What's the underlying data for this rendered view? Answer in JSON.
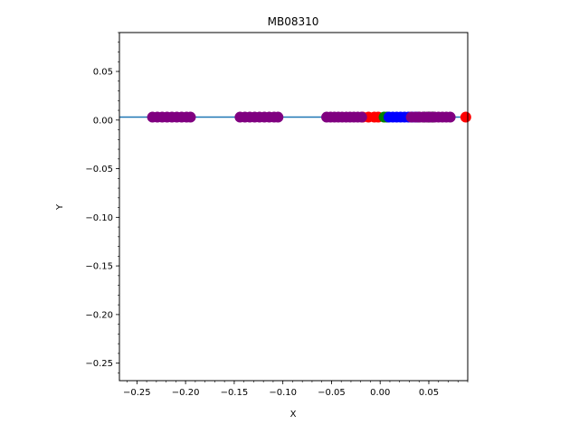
{
  "chart_data": {
    "type": "scatter",
    "title": "MB08310",
    "xlabel": "X",
    "ylabel": "Y",
    "xlim": [
      -0.268,
      0.09
    ],
    "ylim": [
      -0.268,
      0.09
    ],
    "x_ticks": [
      -0.25,
      -0.2,
      -0.15,
      -0.1,
      -0.05,
      0.0,
      0.05
    ],
    "x_tick_labels": [
      "−0.25",
      "−0.20",
      "−0.15",
      "−0.10",
      "−0.05",
      "0.00",
      "0.05"
    ],
    "y_ticks": [
      0.05,
      0.0,
      -0.05,
      -0.1,
      -0.15,
      -0.2,
      -0.25
    ],
    "y_tick_labels": [
      "0.05",
      "0.00",
      "−0.05",
      "−0.10",
      "−0.15",
      "−0.20",
      "−0.25"
    ],
    "x_minor_step": 0.01,
    "y_minor_step": 0.01,
    "grid": false,
    "line": {
      "y": 0.003,
      "color": "#1f77b4"
    },
    "series": [
      {
        "color": "#ff0000",
        "points": [
          [
            -0.018,
            0.003
          ],
          [
            -0.012,
            0.003
          ],
          [
            -0.006,
            0.003
          ],
          [
            -0.002,
            0.003
          ],
          [
            0.088,
            0.003
          ]
        ]
      },
      {
        "color": "#008000",
        "points": [
          [
            0.004,
            0.003
          ],
          [
            0.007,
            0.003
          ]
        ]
      },
      {
        "color": "#0000ff",
        "points": [
          [
            0.009,
            0.003
          ],
          [
            0.013,
            0.003
          ],
          [
            0.017,
            0.003
          ],
          [
            0.021,
            0.003
          ],
          [
            0.025,
            0.003
          ],
          [
            0.029,
            0.003
          ],
          [
            0.033,
            0.003
          ],
          [
            0.037,
            0.003
          ]
        ]
      },
      {
        "color": "#000000",
        "points": [
          [
            0.04,
            0.003
          ],
          [
            0.045,
            0.003
          ],
          [
            0.05,
            0.003
          ],
          [
            0.054,
            0.003
          ]
        ]
      },
      {
        "color": "#800080",
        "points": [
          [
            -0.234,
            0.003
          ],
          [
            -0.229,
            0.003
          ],
          [
            -0.224,
            0.003
          ],
          [
            -0.219,
            0.003
          ],
          [
            -0.214,
            0.003
          ],
          [
            -0.209,
            0.003
          ],
          [
            -0.204,
            0.003
          ],
          [
            -0.199,
            0.003
          ],
          [
            -0.195,
            0.003
          ],
          [
            -0.144,
            0.003
          ],
          [
            -0.139,
            0.003
          ],
          [
            -0.134,
            0.003
          ],
          [
            -0.129,
            0.003
          ],
          [
            -0.124,
            0.003
          ],
          [
            -0.119,
            0.003
          ],
          [
            -0.114,
            0.003
          ],
          [
            -0.109,
            0.003
          ],
          [
            -0.105,
            0.003
          ],
          [
            -0.055,
            0.003
          ],
          [
            -0.051,
            0.003
          ],
          [
            -0.047,
            0.003
          ],
          [
            -0.043,
            0.003
          ],
          [
            -0.039,
            0.003
          ],
          [
            -0.035,
            0.003
          ],
          [
            -0.031,
            0.003
          ],
          [
            -0.027,
            0.003
          ],
          [
            -0.023,
            0.003
          ],
          [
            -0.019,
            0.003
          ],
          [
            0.032,
            0.003
          ],
          [
            0.036,
            0.003
          ],
          [
            0.04,
            0.003
          ],
          [
            0.044,
            0.003
          ],
          [
            0.048,
            0.003
          ],
          [
            0.052,
            0.003
          ],
          [
            0.056,
            0.003
          ],
          [
            0.06,
            0.003
          ],
          [
            0.064,
            0.003
          ],
          [
            0.068,
            0.003
          ],
          [
            0.072,
            0.003
          ]
        ]
      }
    ]
  }
}
